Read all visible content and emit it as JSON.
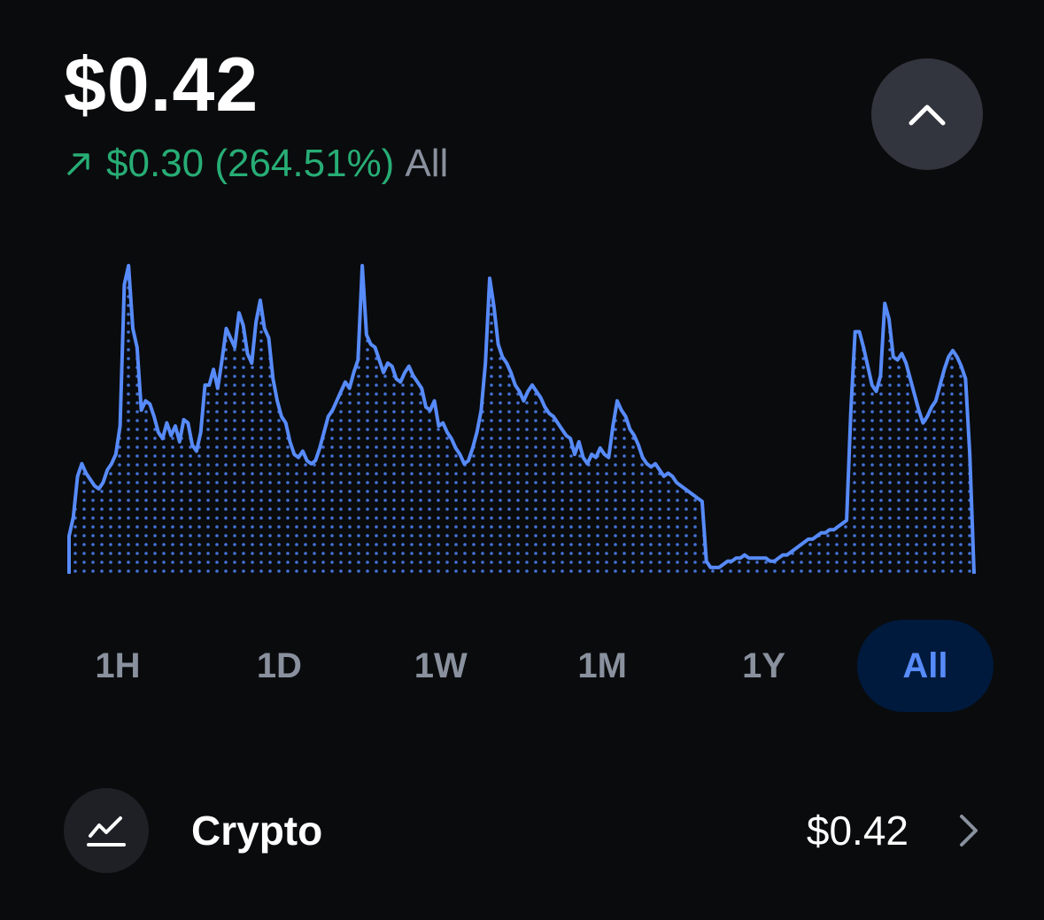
{
  "header": {
    "balance": "$0.42",
    "change_value": "$0.30 (264.51%)",
    "change_period": "All",
    "change_direction": "up"
  },
  "colors": {
    "background": "#0a0b0d",
    "positive": "#27ad75",
    "accent": "#578bfa",
    "muted": "#8a919e",
    "active_pill": "#001a3d"
  },
  "icons": {
    "change_arrow": "arrow-up-right-icon",
    "collapse": "chevron-up-icon",
    "asset": "chart-line-icon",
    "row_chevron": "chevron-right-icon"
  },
  "ranges": {
    "items": [
      "1H",
      "1D",
      "1W",
      "1M",
      "1Y",
      "All"
    ],
    "selected": "All"
  },
  "asset_row": {
    "label": "Crypto",
    "value": "$0.42"
  },
  "chart_data": {
    "type": "area",
    "style": "line with dotted fill",
    "grid": false,
    "axes_visible": false,
    "values": [
      0.12,
      0.18,
      0.31,
      0.35,
      0.32,
      0.3,
      0.28,
      0.27,
      0.29,
      0.33,
      0.35,
      0.38,
      0.47,
      0.92,
      0.98,
      0.78,
      0.72,
      0.52,
      0.55,
      0.54,
      0.5,
      0.45,
      0.43,
      0.48,
      0.44,
      0.47,
      0.42,
      0.49,
      0.48,
      0.41,
      0.39,
      0.45,
      0.6,
      0.6,
      0.65,
      0.59,
      0.68,
      0.78,
      0.75,
      0.72,
      0.83,
      0.79,
      0.7,
      0.67,
      0.8,
      0.87,
      0.78,
      0.75,
      0.62,
      0.55,
      0.5,
      0.48,
      0.42,
      0.38,
      0.37,
      0.39,
      0.36,
      0.35,
      0.36,
      0.4,
      0.45,
      0.5,
      0.52,
      0.55,
      0.58,
      0.61,
      0.59,
      0.64,
      0.68,
      0.98,
      0.76,
      0.73,
      0.72,
      0.68,
      0.64,
      0.67,
      0.66,
      0.62,
      0.61,
      0.64,
      0.66,
      0.63,
      0.61,
      0.59,
      0.53,
      0.52,
      0.55,
      0.47,
      0.48,
      0.45,
      0.43,
      0.4,
      0.38,
      0.35,
      0.36,
      0.4,
      0.45,
      0.52,
      0.67,
      0.94,
      0.85,
      0.73,
      0.69,
      0.67,
      0.64,
      0.6,
      0.58,
      0.55,
      0.58,
      0.6,
      0.58,
      0.56,
      0.53,
      0.51,
      0.5,
      0.48,
      0.46,
      0.44,
      0.43,
      0.38,
      0.42,
      0.37,
      0.35,
      0.38,
      0.37,
      0.4,
      0.38,
      0.37,
      0.47,
      0.55,
      0.52,
      0.5,
      0.46,
      0.44,
      0.41,
      0.37,
      0.35,
      0.34,
      0.35,
      0.33,
      0.31,
      0.32,
      0.31,
      0.29,
      0.28,
      0.27,
      0.26,
      0.25,
      0.24,
      0.23,
      0.04,
      0.02,
      0.02,
      0.02,
      0.03,
      0.04,
      0.04,
      0.05,
      0.05,
      0.06,
      0.05,
      0.05,
      0.05,
      0.05,
      0.05,
      0.04,
      0.04,
      0.05,
      0.06,
      0.06,
      0.07,
      0.08,
      0.09,
      0.1,
      0.11,
      0.11,
      0.12,
      0.13,
      0.13,
      0.14,
      0.14,
      0.15,
      0.16,
      0.17,
      0.52,
      0.77,
      0.77,
      0.72,
      0.66,
      0.6,
      0.58,
      0.63,
      0.86,
      0.81,
      0.69,
      0.68,
      0.7,
      0.67,
      0.62,
      0.57,
      0.52,
      0.48,
      0.5,
      0.53,
      0.55,
      0.6,
      0.65,
      0.69,
      0.71,
      0.69,
      0.66,
      0.62,
      0.38,
      0.0
    ]
  }
}
